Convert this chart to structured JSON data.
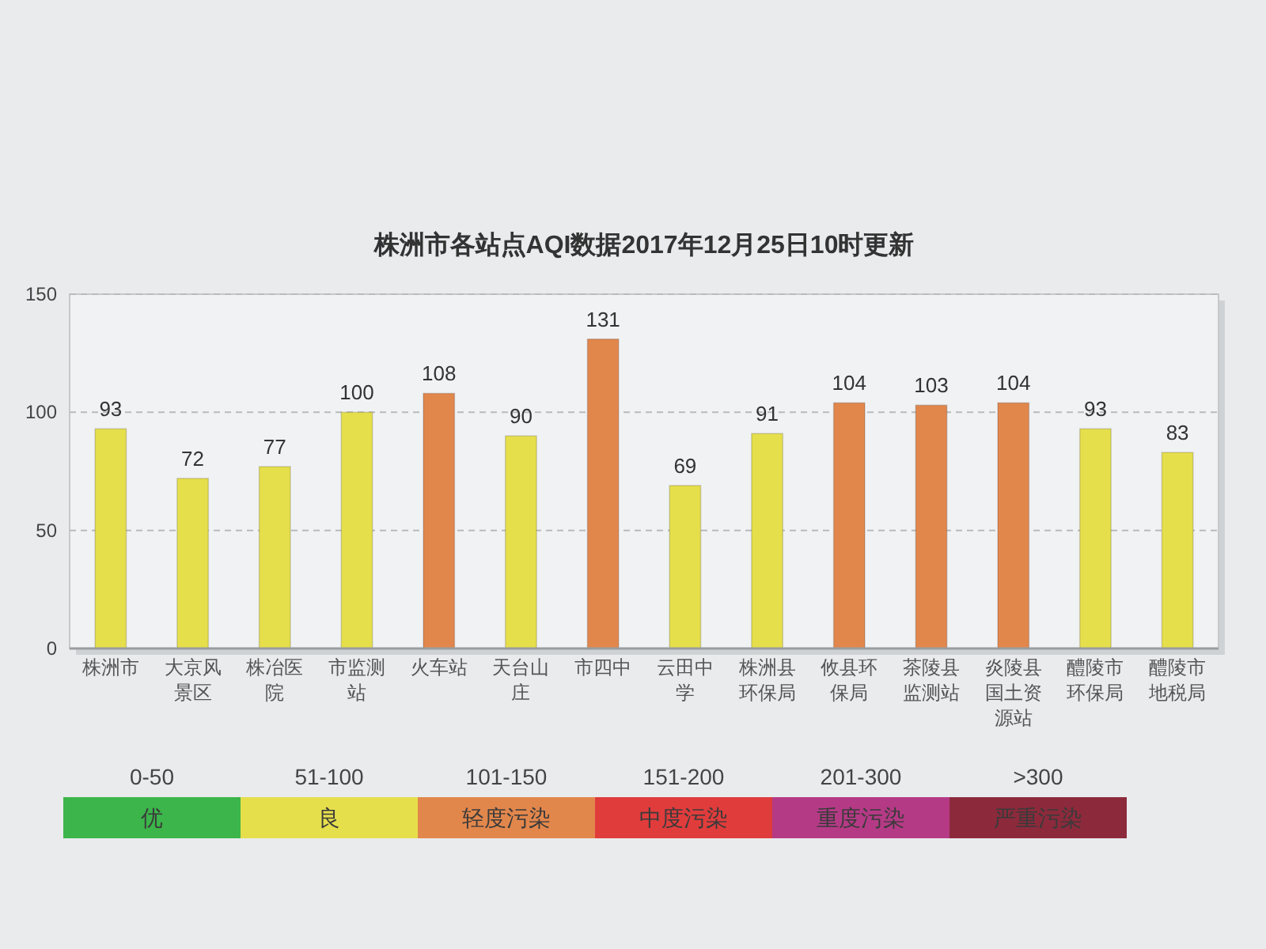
{
  "chart_data": {
    "type": "bar",
    "title": "株洲市各站点AQI数据2017年12月25日10时更新",
    "categories": [
      "株洲市",
      "大京风景区",
      "株冶医院",
      "市监测站",
      "火车站",
      "天台山庄",
      "市四中",
      "云田中学",
      "株洲县环保局",
      "攸县环保局",
      "茶陵县监测站",
      "炎陵县国土资源站",
      "醴陵市环保局",
      "醴陵市地税局"
    ],
    "series": [
      {
        "name": "优",
        "color": "#3cb54a",
        "values": [
          null,
          null,
          null,
          null,
          null,
          null,
          null,
          null,
          null,
          null,
          null,
          null,
          null,
          null
        ]
      },
      {
        "name": "良",
        "color": "#e6df4c",
        "values": [
          93,
          72,
          77,
          100,
          null,
          90,
          null,
          69,
          91,
          null,
          null,
          null,
          93,
          83
        ]
      },
      {
        "name": "轻度污染",
        "color": "#e2874c",
        "values": [
          null,
          null,
          null,
          null,
          108,
          null,
          131,
          null,
          null,
          104,
          103,
          104,
          null,
          null
        ]
      },
      {
        "name": "中度污染",
        "color": "#e03c3c",
        "values": [
          null,
          null,
          null,
          null,
          null,
          null,
          null,
          null,
          null,
          null,
          null,
          null,
          null,
          null
        ]
      },
      {
        "name": "重度污染",
        "color": "#b53a86",
        "values": [
          null,
          null,
          null,
          null,
          null,
          null,
          null,
          null,
          null,
          null,
          null,
          null,
          null,
          null
        ]
      },
      {
        "name": "严重污染",
        "color": "#8c2a3c",
        "values": [
          null,
          null,
          null,
          null,
          null,
          null,
          null,
          null,
          null,
          null,
          null,
          null,
          null,
          null
        ]
      }
    ],
    "stacked": true,
    "ylim": [
      0,
      150
    ],
    "yticks": [
      0,
      50,
      100,
      150
    ],
    "grid": "y",
    "data_labels": true,
    "legend": "bottom",
    "annotations": [
      "0-50",
      "51-100",
      "101-150",
      "151-200",
      "201-300",
      ">300"
    ]
  }
}
